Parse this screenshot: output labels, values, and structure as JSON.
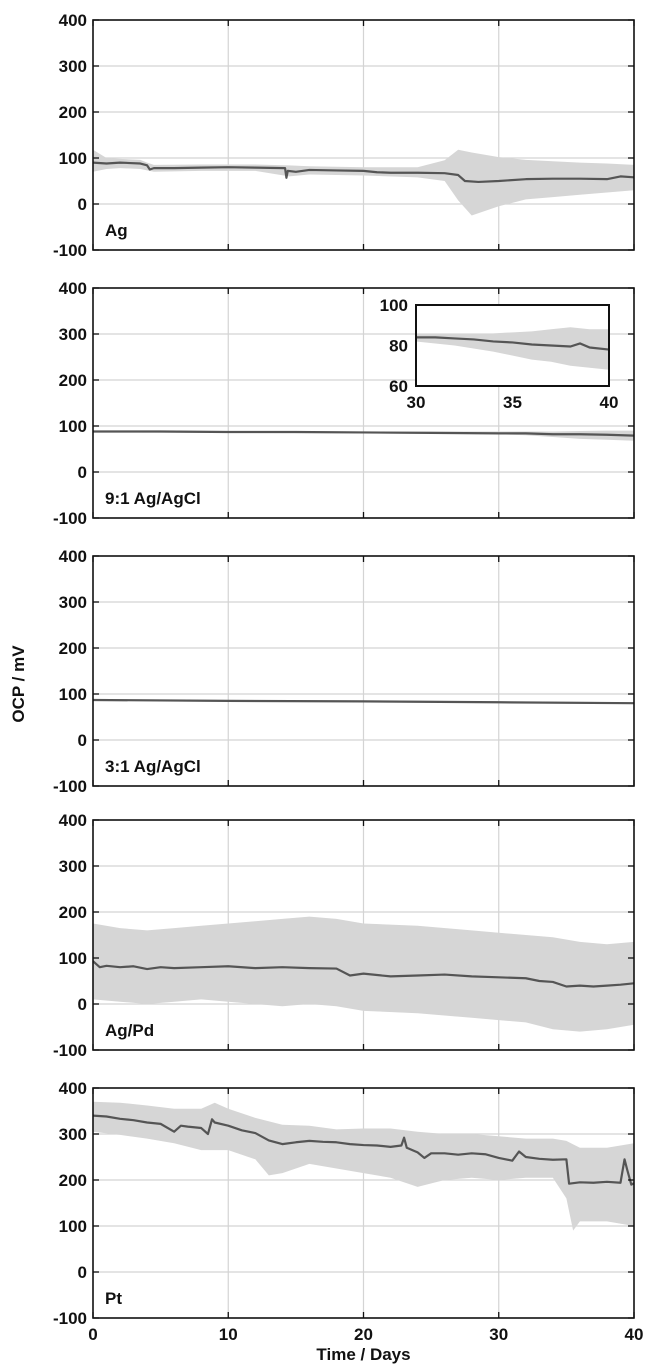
{
  "chart_data": {
    "type": "line",
    "ylabel": "OCP / mV",
    "xlabel": "Time / Days",
    "xlim": [
      0,
      40
    ],
    "ylim": [
      -100,
      400
    ],
    "xticks": [
      0,
      10,
      20,
      30,
      40
    ],
    "yticks": [
      -100,
      0,
      100,
      200,
      300,
      400
    ],
    "grid": true,
    "series_color": "#555555",
    "band_color": "#d6d6d6",
    "panels": [
      {
        "label": "Ag",
        "mean": [
          [
            0,
            90
          ],
          [
            1,
            88
          ],
          [
            2,
            90
          ],
          [
            3.5,
            88
          ],
          [
            4,
            84
          ],
          [
            4.2,
            75
          ],
          [
            4.5,
            78
          ],
          [
            6,
            78
          ],
          [
            8,
            79
          ],
          [
            10,
            80
          ],
          [
            12,
            79
          ],
          [
            14.2,
            78
          ],
          [
            14.3,
            57
          ],
          [
            14.4,
            72
          ],
          [
            15,
            70
          ],
          [
            16,
            74
          ],
          [
            18,
            73
          ],
          [
            20,
            72
          ],
          [
            21,
            69
          ],
          [
            22,
            68
          ],
          [
            24,
            68
          ],
          [
            26,
            67
          ],
          [
            27,
            63
          ],
          [
            27.5,
            50
          ],
          [
            28.5,
            48
          ],
          [
            30,
            50
          ],
          [
            32,
            54
          ],
          [
            34,
            55
          ],
          [
            36,
            55
          ],
          [
            38,
            54
          ],
          [
            39,
            60
          ],
          [
            40,
            58
          ]
        ],
        "upper": [
          [
            0,
            118
          ],
          [
            1,
            100
          ],
          [
            2,
            98
          ],
          [
            3.5,
            96
          ],
          [
            4,
            90
          ],
          [
            4.5,
            85
          ],
          [
            8,
            86
          ],
          [
            12,
            86
          ],
          [
            14.5,
            84
          ],
          [
            16,
            82
          ],
          [
            20,
            80
          ],
          [
            24,
            80
          ],
          [
            26,
            95
          ],
          [
            27,
            118
          ],
          [
            28,
            112
          ],
          [
            30,
            102
          ],
          [
            32,
            96
          ],
          [
            34,
            93
          ],
          [
            36,
            90
          ],
          [
            38,
            88
          ],
          [
            40,
            85
          ]
        ],
        "lower": [
          [
            0,
            70
          ],
          [
            1,
            76
          ],
          [
            2,
            78
          ],
          [
            3.5,
            76
          ],
          [
            4.5,
            70
          ],
          [
            8,
            72
          ],
          [
            12,
            72
          ],
          [
            14.5,
            60
          ],
          [
            16,
            64
          ],
          [
            20,
            62
          ],
          [
            24,
            58
          ],
          [
            26,
            50
          ],
          [
            27,
            8
          ],
          [
            28,
            -25
          ],
          [
            30,
            -5
          ],
          [
            32,
            10
          ],
          [
            34,
            15
          ],
          [
            36,
            20
          ],
          [
            38,
            25
          ],
          [
            40,
            30
          ]
        ]
      },
      {
        "label": "9:1 Ag/AgCl",
        "mean": [
          [
            0,
            88
          ],
          [
            5,
            88
          ],
          [
            10,
            87
          ],
          [
            15,
            87
          ],
          [
            20,
            86
          ],
          [
            25,
            85
          ],
          [
            30,
            84
          ],
          [
            32,
            84
          ],
          [
            34,
            82
          ],
          [
            36,
            82
          ],
          [
            38,
            81
          ],
          [
            40,
            79
          ]
        ],
        "upper": [
          [
            0,
            90
          ],
          [
            10,
            89
          ],
          [
            20,
            88
          ],
          [
            30,
            88
          ],
          [
            32,
            88
          ],
          [
            34,
            88
          ],
          [
            36,
            89
          ],
          [
            38,
            90
          ],
          [
            40,
            90
          ]
        ],
        "lower": [
          [
            0,
            86
          ],
          [
            10,
            85
          ],
          [
            20,
            84
          ],
          [
            30,
            82
          ],
          [
            32,
            80
          ],
          [
            34,
            76
          ],
          [
            36,
            72
          ],
          [
            38,
            70
          ],
          [
            40,
            68
          ]
        ],
        "inset": {
          "xlim": [
            30,
            40
          ],
          "ylim": [
            60,
            100
          ],
          "xticks": [
            30,
            35,
            40
          ],
          "yticks": [
            60,
            80,
            100
          ],
          "mean": [
            [
              30,
              84
            ],
            [
              31,
              84
            ],
            [
              32,
              83.5
            ],
            [
              33,
              83
            ],
            [
              34,
              82
            ],
            [
              35,
              81.5
            ],
            [
              36,
              80.5
            ],
            [
              37,
              80
            ],
            [
              38,
              79.5
            ],
            [
              38.5,
              81
            ],
            [
              39,
              79
            ],
            [
              40,
              78
            ]
          ],
          "upper": [
            [
              30,
              86
            ],
            [
              32,
              86
            ],
            [
              34,
              86
            ],
            [
              36,
              87
            ],
            [
              37,
              88
            ],
            [
              38,
              89
            ],
            [
              39,
              88
            ],
            [
              40,
              88
            ]
          ],
          "lower": [
            [
              30,
              82
            ],
            [
              32,
              80
            ],
            [
              34,
              77
            ],
            [
              36,
              73
            ],
            [
              37,
              72
            ],
            [
              38,
              70
            ],
            [
              39,
              69
            ],
            [
              40,
              68
            ]
          ]
        }
      },
      {
        "label": "3:1 Ag/AgCl",
        "mean": [
          [
            0,
            87
          ],
          [
            10,
            85
          ],
          [
            20,
            84
          ],
          [
            30,
            82
          ],
          [
            40,
            80
          ]
        ],
        "upper": [
          [
            0,
            89
          ],
          [
            10,
            87
          ],
          [
            20,
            86
          ],
          [
            30,
            84
          ],
          [
            40,
            82
          ]
        ],
        "lower": [
          [
            0,
            85
          ],
          [
            10,
            83
          ],
          [
            20,
            82
          ],
          [
            30,
            80
          ],
          [
            40,
            78
          ]
        ]
      },
      {
        "label": "Ag/Pd",
        "mean": [
          [
            0,
            93
          ],
          [
            0.5,
            80
          ],
          [
            1,
            83
          ],
          [
            2,
            80
          ],
          [
            3,
            82
          ],
          [
            4,
            76
          ],
          [
            5,
            80
          ],
          [
            6,
            78
          ],
          [
            8,
            80
          ],
          [
            10,
            82
          ],
          [
            12,
            78
          ],
          [
            14,
            80
          ],
          [
            16,
            78
          ],
          [
            18,
            77
          ],
          [
            19,
            62
          ],
          [
            20,
            66
          ],
          [
            22,
            60
          ],
          [
            24,
            62
          ],
          [
            26,
            64
          ],
          [
            28,
            60
          ],
          [
            30,
            58
          ],
          [
            32,
            56
          ],
          [
            33,
            50
          ],
          [
            34,
            48
          ],
          [
            35,
            38
          ],
          [
            36,
            40
          ],
          [
            37,
            38
          ],
          [
            38,
            40
          ],
          [
            39,
            42
          ],
          [
            40,
            45
          ]
        ],
        "upper": [
          [
            0,
            175
          ],
          [
            2,
            165
          ],
          [
            4,
            160
          ],
          [
            6,
            165
          ],
          [
            8,
            170
          ],
          [
            10,
            175
          ],
          [
            12,
            180
          ],
          [
            14,
            185
          ],
          [
            16,
            190
          ],
          [
            18,
            185
          ],
          [
            20,
            175
          ],
          [
            24,
            170
          ],
          [
            28,
            160
          ],
          [
            30,
            155
          ],
          [
            34,
            145
          ],
          [
            36,
            135
          ],
          [
            38,
            130
          ],
          [
            40,
            135
          ]
        ],
        "lower": [
          [
            0,
            10
          ],
          [
            2,
            5
          ],
          [
            4,
            0
          ],
          [
            6,
            5
          ],
          [
            8,
            10
          ],
          [
            10,
            5
          ],
          [
            12,
            0
          ],
          [
            14,
            -5
          ],
          [
            16,
            0
          ],
          [
            18,
            -5
          ],
          [
            20,
            -15
          ],
          [
            24,
            -20
          ],
          [
            28,
            -30
          ],
          [
            30,
            -35
          ],
          [
            32,
            -40
          ],
          [
            34,
            -55
          ],
          [
            36,
            -60
          ],
          [
            38,
            -55
          ],
          [
            40,
            -45
          ]
        ]
      },
      {
        "label": "Pt",
        "mean": [
          [
            0,
            340
          ],
          [
            1,
            338
          ],
          [
            2,
            333
          ],
          [
            3,
            330
          ],
          [
            4,
            325
          ],
          [
            5,
            322
          ],
          [
            6,
            305
          ],
          [
            6.5,
            318
          ],
          [
            7,
            316
          ],
          [
            8,
            313
          ],
          [
            8.5,
            300
          ],
          [
            8.8,
            332
          ],
          [
            9,
            325
          ],
          [
            10,
            318
          ],
          [
            11,
            308
          ],
          [
            12,
            302
          ],
          [
            13,
            286
          ],
          [
            14,
            278
          ],
          [
            15,
            282
          ],
          [
            16,
            285
          ],
          [
            17,
            283
          ],
          [
            18,
            282
          ],
          [
            19,
            278
          ],
          [
            20,
            276
          ],
          [
            21,
            275
          ],
          [
            22,
            272
          ],
          [
            22.8,
            275
          ],
          [
            23,
            292
          ],
          [
            23.2,
            270
          ],
          [
            24,
            260
          ],
          [
            24.5,
            248
          ],
          [
            25,
            258
          ],
          [
            26,
            258
          ],
          [
            27,
            255
          ],
          [
            28,
            258
          ],
          [
            29,
            256
          ],
          [
            30,
            248
          ],
          [
            31,
            242
          ],
          [
            31.5,
            262
          ],
          [
            32,
            250
          ],
          [
            33,
            246
          ],
          [
            34,
            244
          ],
          [
            35,
            245
          ],
          [
            35.2,
            192
          ],
          [
            36,
            195
          ],
          [
            37,
            194
          ],
          [
            38,
            196
          ],
          [
            39,
            194
          ],
          [
            39.3,
            245
          ],
          [
            39.5,
            222
          ],
          [
            39.8,
            190
          ],
          [
            40,
            193
          ]
        ],
        "upper": [
          [
            0,
            370
          ],
          [
            2,
            368
          ],
          [
            4,
            362
          ],
          [
            6,
            355
          ],
          [
            8,
            355
          ],
          [
            9,
            368
          ],
          [
            10,
            355
          ],
          [
            12,
            335
          ],
          [
            14,
            320
          ],
          [
            16,
            318
          ],
          [
            18,
            310
          ],
          [
            20,
            312
          ],
          [
            22,
            312
          ],
          [
            24,
            305
          ],
          [
            26,
            300
          ],
          [
            28,
            300
          ],
          [
            30,
            295
          ],
          [
            32,
            290
          ],
          [
            34,
            290
          ],
          [
            35,
            285
          ],
          [
            36,
            270
          ],
          [
            38,
            270
          ],
          [
            40,
            280
          ]
        ],
        "lower": [
          [
            0,
            305
          ],
          [
            2,
            298
          ],
          [
            4,
            290
          ],
          [
            6,
            280
          ],
          [
            8,
            265
          ],
          [
            10,
            265
          ],
          [
            12,
            245
          ],
          [
            13,
            210
          ],
          [
            14,
            215
          ],
          [
            16,
            235
          ],
          [
            18,
            225
          ],
          [
            20,
            215
          ],
          [
            22,
            205
          ],
          [
            24,
            185
          ],
          [
            26,
            200
          ],
          [
            28,
            205
          ],
          [
            30,
            200
          ],
          [
            32,
            205
          ],
          [
            34,
            205
          ],
          [
            35,
            160
          ],
          [
            35.5,
            90
          ],
          [
            36,
            110
          ],
          [
            38,
            110
          ],
          [
            40,
            100
          ]
        ]
      }
    ]
  }
}
